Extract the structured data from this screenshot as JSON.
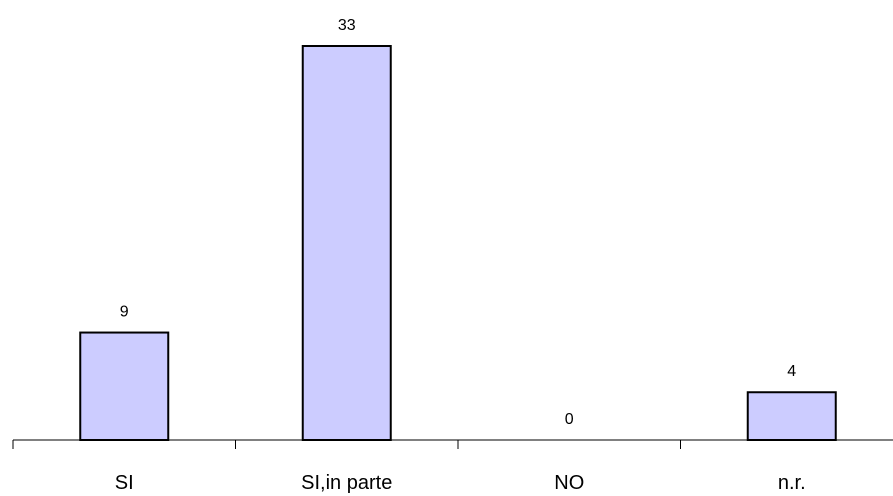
{
  "chart_data": {
    "type": "bar",
    "categories": [
      "SI",
      "SI,in parte",
      "NO",
      "n.r."
    ],
    "values": [
      9,
      33,
      0,
      4
    ],
    "data_labels": [
      "9",
      "33",
      "0",
      "4"
    ],
    "title": "",
    "xlabel": "",
    "ylabel": "",
    "ylim": [
      0,
      33
    ],
    "grid": false,
    "legend": "none",
    "colors": {
      "bar_fill": "#ccccff",
      "bar_stroke": "#000000",
      "axis": "#000000"
    }
  }
}
